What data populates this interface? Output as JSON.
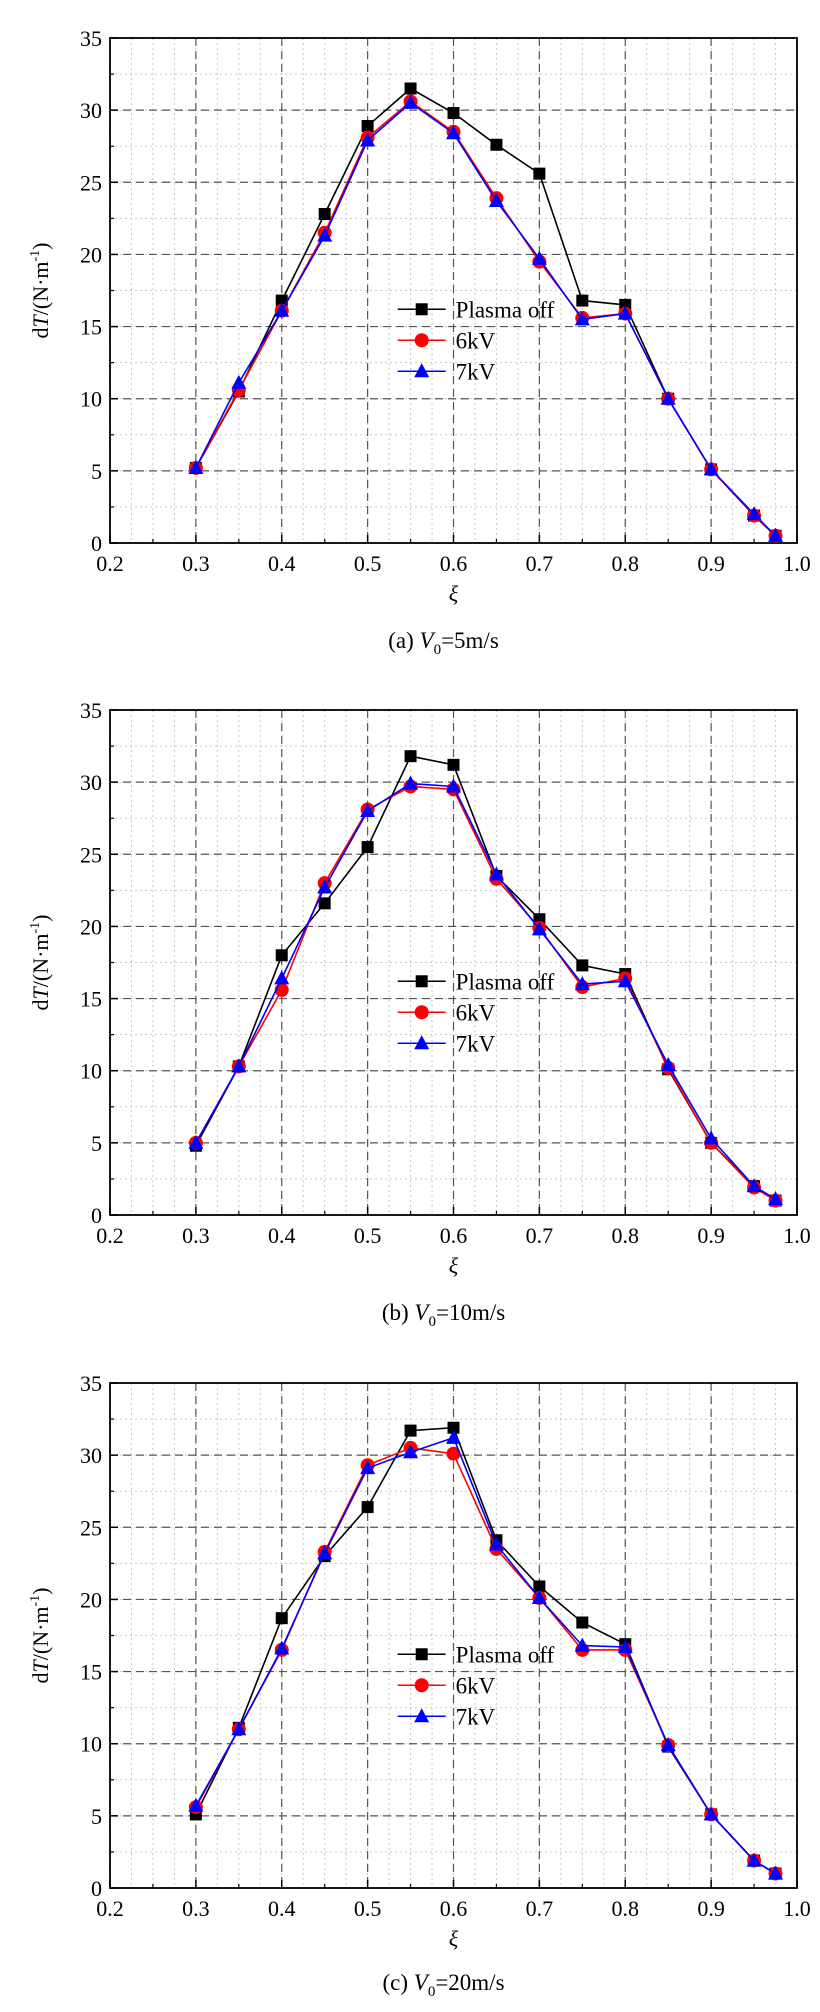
{
  "colors": {
    "plasma_off": "#000000",
    "kv6": "#ff0000",
    "kv7": "#0000ff",
    "grid": "#555555",
    "grid_minor": "#c8c8c8"
  },
  "chart_data": [
    {
      "type": "line",
      "caption": {
        "prefix": "(a) ",
        "var": "V",
        "sub": "0",
        "suffix": "=5m/s"
      },
      "xlabel": "ξ",
      "ylabel": {
        "pre": "d",
        "var": "T",
        "post": "/(N·m",
        "sup": "-1",
        "end": ")"
      },
      "xlim": [
        0.2,
        1.0
      ],
      "ylim": [
        0,
        35
      ],
      "xticks": [
        "0.2",
        "0.3",
        "0.4",
        "0.5",
        "0.6",
        "0.7",
        "0.8",
        "0.9",
        "1.0"
      ],
      "yticks": [
        "0",
        "5",
        "10",
        "15",
        "20",
        "25",
        "30",
        "35"
      ],
      "x": [
        0.3,
        0.35,
        0.4,
        0.45,
        0.5,
        0.55,
        0.6,
        0.65,
        0.7,
        0.75,
        0.8,
        0.85,
        0.9,
        0.95,
        0.975
      ],
      "series": [
        {
          "name": "Plasma off",
          "marker": "square",
          "values": [
            5.2,
            10.5,
            16.8,
            22.8,
            28.9,
            31.5,
            29.8,
            27.6,
            25.6,
            16.8,
            16.5,
            10.0,
            5.1,
            1.9,
            0.5
          ]
        },
        {
          "name": "6kV",
          "marker": "circle",
          "values": [
            5.2,
            10.6,
            16.1,
            21.5,
            28.1,
            30.6,
            28.5,
            23.9,
            19.5,
            15.6,
            15.9,
            10.0,
            5.1,
            1.9,
            0.5
          ]
        },
        {
          "name": "7kV",
          "marker": "triangle",
          "values": [
            5.2,
            11.1,
            16.1,
            21.3,
            27.9,
            30.5,
            28.4,
            23.7,
            19.7,
            15.5,
            15.9,
            10.0,
            5.1,
            2.0,
            0.5
          ]
        }
      ]
    },
    {
      "type": "line",
      "caption": {
        "prefix": "(b) ",
        "var": "V",
        "sub": "0",
        "suffix": "=10m/s"
      },
      "xlabel": "ξ",
      "ylabel": {
        "pre": "d",
        "var": "T",
        "post": "/(N·m",
        "sup": "-1",
        "end": ")"
      },
      "xlim": [
        0.2,
        1.0
      ],
      "ylim": [
        0,
        35
      ],
      "xticks": [
        "0.2",
        "0.3",
        "0.4",
        "0.5",
        "0.6",
        "0.7",
        "0.8",
        "0.9",
        "1.0"
      ],
      "yticks": [
        "0",
        "5",
        "10",
        "15",
        "20",
        "25",
        "30",
        "35"
      ],
      "x": [
        0.3,
        0.35,
        0.4,
        0.45,
        0.5,
        0.55,
        0.6,
        0.65,
        0.7,
        0.75,
        0.8,
        0.85,
        0.9,
        0.95,
        0.975
      ],
      "series": [
        {
          "name": "Plasma off",
          "marker": "square",
          "values": [
            4.8,
            10.3,
            18.0,
            21.6,
            25.5,
            31.8,
            31.2,
            23.5,
            20.5,
            17.3,
            16.7,
            10.1,
            5.0,
            2.0,
            1.0
          ]
        },
        {
          "name": "6kV",
          "marker": "circle",
          "values": [
            5.0,
            10.3,
            15.6,
            23.0,
            28.1,
            29.7,
            29.5,
            23.3,
            19.9,
            15.8,
            16.4,
            10.2,
            5.0,
            1.9,
            1.0
          ]
        },
        {
          "name": "7kV",
          "marker": "triangle",
          "values": [
            5.0,
            10.3,
            16.4,
            22.7,
            28.0,
            29.9,
            29.7,
            23.6,
            19.8,
            16.0,
            16.2,
            10.4,
            5.3,
            2.0,
            1.1
          ]
        }
      ]
    },
    {
      "type": "line",
      "caption": {
        "prefix": "(c) ",
        "var": "V",
        "sub": "0",
        "suffix": "=20m/s"
      },
      "xlabel": "ξ",
      "ylabel": {
        "pre": "d",
        "var": "T",
        "post": "/(N·m",
        "sup": "-1",
        "end": ")"
      },
      "xlim": [
        0.2,
        1.0
      ],
      "ylim": [
        0,
        35
      ],
      "xticks": [
        "0.2",
        "0.3",
        "0.4",
        "0.5",
        "0.6",
        "0.7",
        "0.8",
        "0.9",
        "1.0"
      ],
      "yticks": [
        "0",
        "5",
        "10",
        "15",
        "20",
        "25",
        "30",
        "35"
      ],
      "x": [
        0.3,
        0.35,
        0.4,
        0.45,
        0.5,
        0.55,
        0.6,
        0.65,
        0.7,
        0.75,
        0.8,
        0.85,
        0.9,
        0.95,
        0.975
      ],
      "series": [
        {
          "name": "Plasma off",
          "marker": "square",
          "values": [
            5.1,
            11.1,
            18.7,
            23.0,
            26.4,
            31.7,
            31.9,
            24.1,
            20.9,
            18.4,
            16.9,
            9.8,
            5.1,
            1.9,
            1.0
          ]
        },
        {
          "name": "6kV",
          "marker": "circle",
          "values": [
            5.6,
            11.0,
            16.5,
            23.3,
            29.3,
            30.5,
            30.1,
            23.5,
            20.1,
            16.5,
            16.5,
            9.9,
            5.1,
            1.9,
            1.0
          ]
        },
        {
          "name": "7kV",
          "marker": "triangle",
          "values": [
            5.7,
            11.0,
            16.6,
            23.2,
            29.1,
            30.2,
            31.2,
            23.8,
            20.1,
            16.8,
            16.7,
            9.9,
            5.1,
            1.9,
            1.0
          ]
        }
      ]
    }
  ]
}
